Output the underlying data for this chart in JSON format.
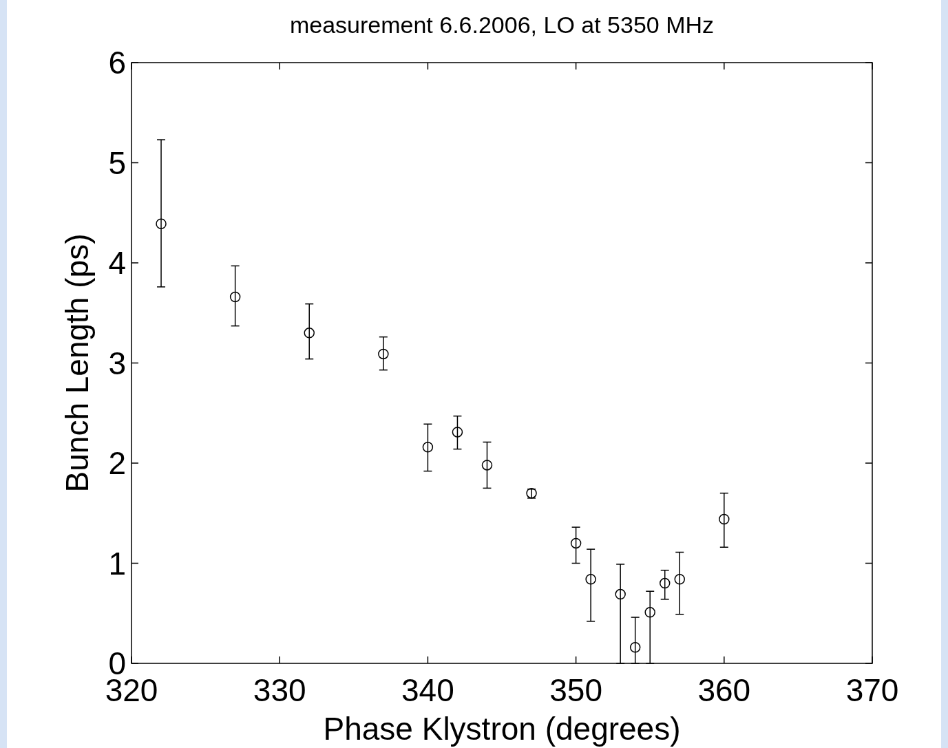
{
  "chart_data": {
    "type": "scatter",
    "title": "measurement 6.6.2006, LO at 5350 MHz",
    "xlabel": "Phase Klystron (degrees)",
    "ylabel": "Bunch Length (ps)",
    "x": [
      322,
      327,
      332,
      337,
      340,
      342,
      344,
      347,
      350,
      351,
      353,
      354,
      355,
      356,
      357,
      360
    ],
    "values": [
      4.39,
      3.66,
      3.3,
      3.09,
      2.16,
      2.31,
      1.98,
      1.7,
      1.2,
      0.84,
      0.69,
      0.16,
      0.51,
      0.8,
      0.84,
      1.44
    ],
    "errors": [
      [
        3.76,
        5.23
      ],
      [
        3.37,
        3.97
      ],
      [
        3.04,
        3.59
      ],
      [
        2.93,
        3.26
      ],
      [
        1.92,
        2.39
      ],
      [
        2.14,
        2.47
      ],
      [
        1.75,
        2.21
      ],
      [
        1.65,
        1.74
      ],
      [
        1.0,
        1.36
      ],
      [
        0.42,
        1.14
      ],
      [
        0,
        0.99
      ],
      [
        0,
        0.46
      ],
      [
        0,
        0.72
      ],
      [
        0.64,
        0.93
      ],
      [
        0.49,
        1.11
      ],
      [
        1.16,
        1.7
      ]
    ],
    "color": "#000000",
    "marker": "circle",
    "xlim": [
      320,
      370
    ],
    "xticks": [
      320,
      330,
      340,
      350,
      360,
      370
    ],
    "ylim": [
      0,
      6
    ],
    "yticks": [
      0,
      1,
      2,
      3,
      4,
      5,
      6
    ],
    "grid": false
  }
}
